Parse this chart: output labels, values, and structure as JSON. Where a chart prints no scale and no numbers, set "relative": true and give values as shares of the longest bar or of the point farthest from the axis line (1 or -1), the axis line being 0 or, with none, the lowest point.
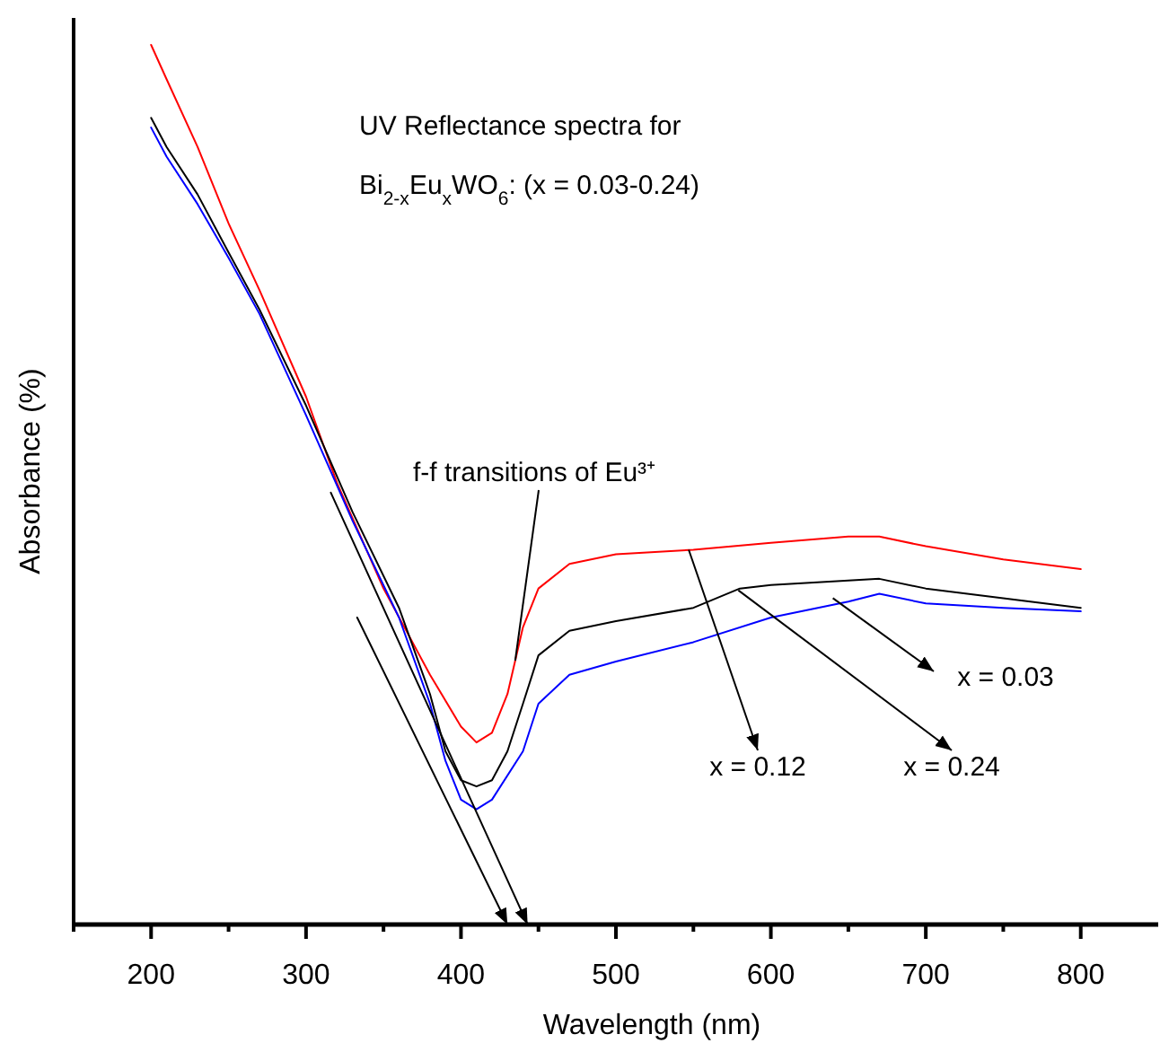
{
  "chart_data": {
    "type": "line",
    "title": "UV Reflectance spectra for",
    "subtitle": "Bi$_{2-x}$Eu$_{x}$WO$_{6}$: (x = 0.03-0.24)",
    "xlabel": "Wavelength (nm)",
    "ylabel": "Absorbance (%)",
    "relative": true,
    "tick_labels": "x",
    "grid": false,
    "line_style": "solid",
    "xlim": [
      150,
      850
    ],
    "xticks": [
      {
        "value": 150,
        "label": null
      },
      200,
      {
        "value": 250,
        "label": null
      },
      300,
      {
        "value": 350,
        "label": null
      },
      400,
      {
        "value": 450,
        "label": null
      },
      500,
      {
        "value": 550,
        "label": null
      },
      600,
      {
        "value": 650,
        "label": null
      },
      700,
      {
        "value": 750,
        "label": null
      },
      800
    ],
    "series": [
      {
        "color": "#ff0000",
        "x": [
          200,
          210,
          230,
          250,
          270,
          300,
          320,
          350,
          380,
          400,
          410,
          420,
          430,
          440,
          450,
          470,
          500,
          550,
          600,
          650,
          670,
          700,
          750,
          800
        ],
        "values": [
          1.0,
          0.961,
          0.884,
          0.797,
          0.721,
          0.6,
          0.502,
          0.382,
          0.284,
          0.225,
          0.207,
          0.218,
          0.262,
          0.338,
          0.382,
          0.41,
          0.421,
          0.426,
          0.434,
          0.441,
          0.441,
          0.43,
          0.415,
          0.404
        ]
      },
      {
        "color": "#000000",
        "x": [
          200,
          210,
          230,
          250,
          270,
          300,
          330,
          360,
          380,
          390,
          400,
          410,
          420,
          430,
          440,
          450,
          470,
          500,
          550,
          580,
          600,
          650,
          670,
          700,
          750,
          800
        ],
        "values": [
          0.917,
          0.884,
          0.83,
          0.764,
          0.699,
          0.59,
          0.469,
          0.36,
          0.262,
          0.197,
          0.164,
          0.157,
          0.164,
          0.197,
          0.251,
          0.306,
          0.334,
          0.345,
          0.36,
          0.382,
          0.386,
          0.391,
          0.393,
          0.382,
          0.371,
          0.36
        ]
      },
      {
        "color": "#0000ff",
        "x": [
          200,
          210,
          230,
          250,
          270,
          300,
          330,
          360,
          380,
          390,
          400,
          410,
          420,
          440,
          450,
          470,
          500,
          550,
          600,
          650,
          670,
          700,
          750,
          800
        ],
        "values": [
          0.906,
          0.873,
          0.819,
          0.758,
          0.694,
          0.579,
          0.459,
          0.349,
          0.251,
          0.186,
          0.142,
          0.131,
          0.142,
          0.197,
          0.251,
          0.284,
          0.299,
          0.321,
          0.349,
          0.367,
          0.376,
          0.365,
          0.36,
          0.356
        ]
      },
      {
        "type": "line",
        "color": "#000000",
        "x": [
          316,
          443
        ],
        "values": [
          0.491,
          0
        ]
      },
      {
        "type": "line",
        "color": "#000000",
        "x": [
          333,
          430
        ],
        "values": [
          0.349,
          0
        ]
      }
    ],
    "annotations": [
      {
        "text": "f-f transitions of Eu³⁺",
        "x": 435,
        "y": 0.3
      },
      {
        "text": "x = 0.03",
        "x": 640,
        "y": 0.371
      },
      {
        "text": "x = 0.12",
        "x": 547,
        "y": 0.426
      },
      {
        "text": "x = 0.24",
        "x": 579,
        "y": 0.38
      }
    ]
  }
}
